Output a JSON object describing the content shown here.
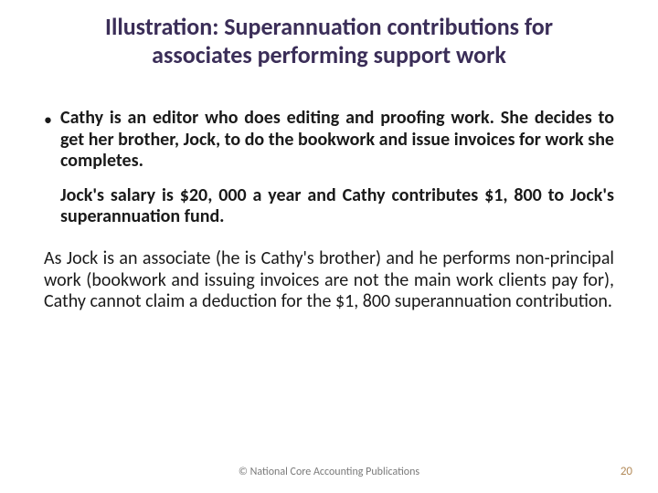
{
  "title_color": "#3b2e58",
  "title_line1": "Illustration: Superannuation contributions for",
  "title_line2": "associates performing support work",
  "bullet_glyph": "•",
  "body_color": "#1a1a1a",
  "para1": "Cathy is an editor who does editing and proofing work. She decides to get her brother, Jock, to do the bookwork and issue invoices for work she completes.",
  "para2": "Jock's salary is $20, 000 a year and Cathy contributes $1, 800 to Jock's superannuation fund.",
  "para3": "As Jock is an associate (he is Cathy's brother) and he performs non-principal work (bookwork and issuing invoices are not the main work clients pay for), Cathy cannot claim a deduction for the $1, 800 superannuation contribution.",
  "footer_center": "© National Core Accounting Publications",
  "page_number": "20",
  "page_number_color": "#b38b5a"
}
